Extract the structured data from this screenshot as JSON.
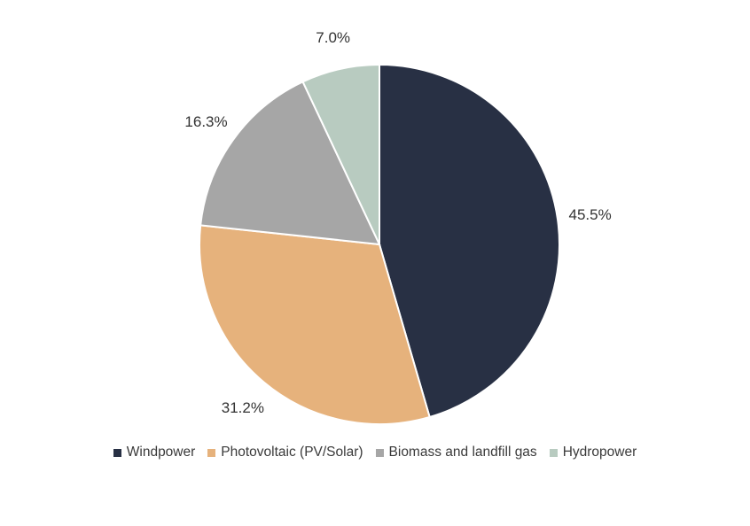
{
  "chart_data": {
    "type": "pie",
    "categories": [
      "Windpower",
      "Photovoltaic (PV/Solar)",
      "Biomass and landfill gas",
      "Hydropower"
    ],
    "values": [
      45.5,
      31.2,
      16.3,
      7.0
    ],
    "labels": [
      "45.5%",
      "31.2%",
      "16.3%",
      "7.0%"
    ],
    "colors": [
      "#283044",
      "#E6B27C",
      "#A6A6A6",
      "#B8CBC0"
    ],
    "legend_position": "bottom",
    "start_angle": "12 o'clock",
    "direction": "clockwise"
  }
}
